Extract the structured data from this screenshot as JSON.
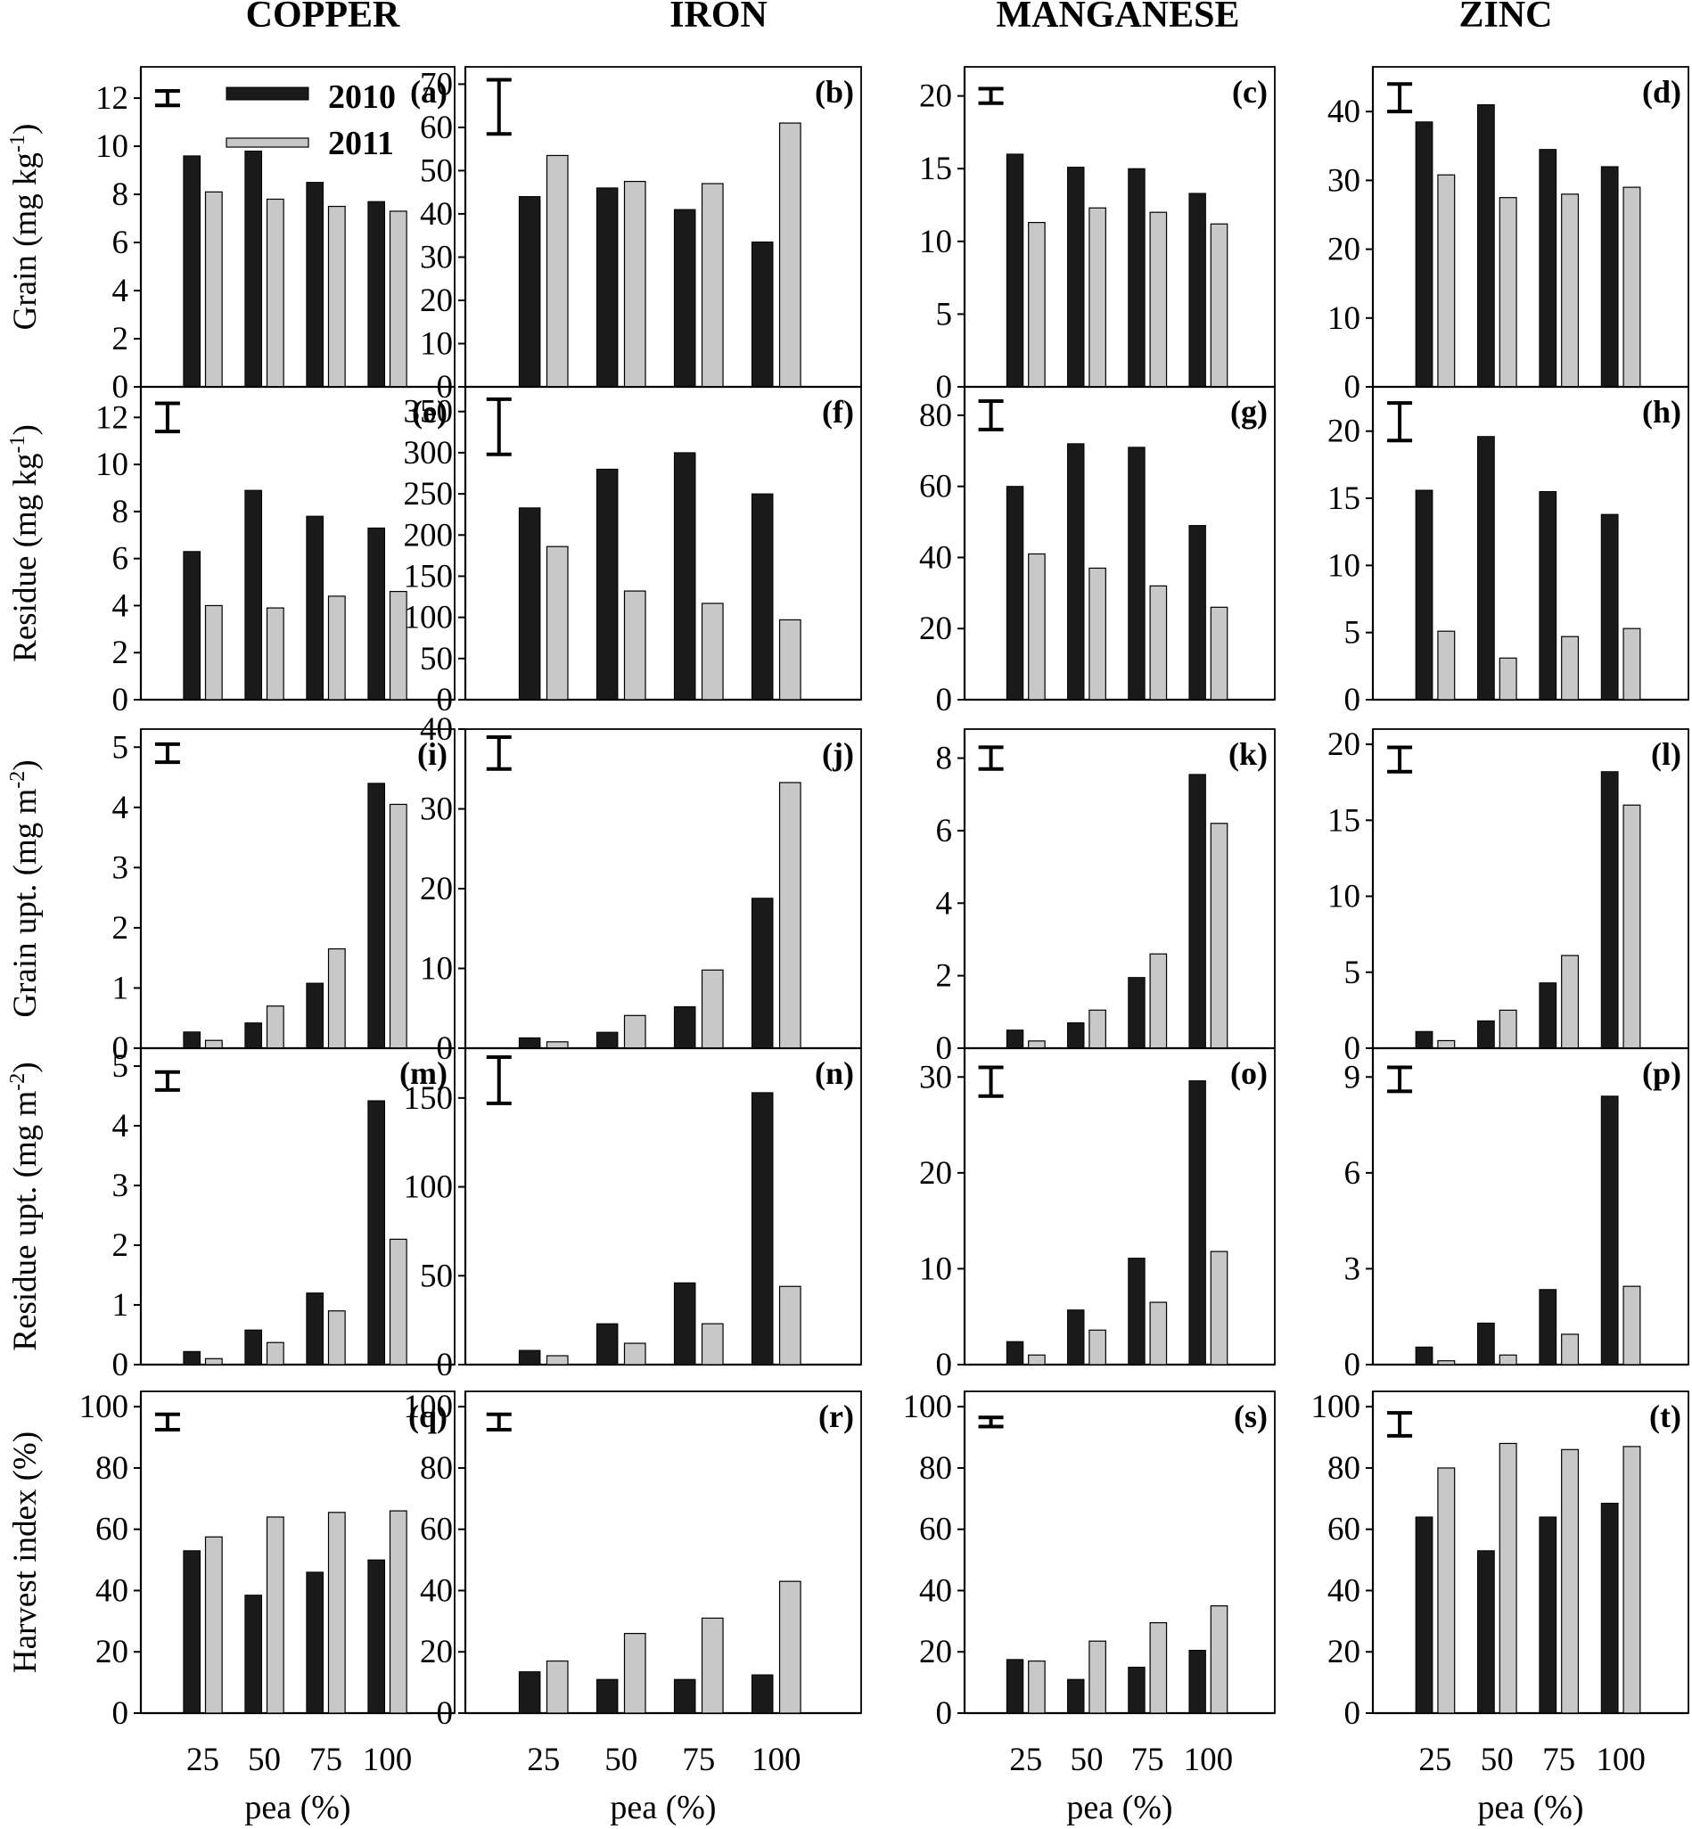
{
  "chart_data": {
    "type": "bar",
    "categories": [
      "25",
      "50",
      "75",
      "100"
    ],
    "columns": [
      "COPPER",
      "IRON",
      "MANGANESE",
      "ZINC"
    ],
    "rows": [
      {
        "ylabel_main": "Grain (mg kg",
        "ylabel_sup": "-1",
        "ylabel_end": ")"
      },
      {
        "ylabel_main": "Residue (mg kg",
        "ylabel_sup": "-1",
        "ylabel_end": ")"
      },
      {
        "ylabel_main": "Grain upt. (mg m",
        "ylabel_sup": "-2",
        "ylabel_end": ")"
      },
      {
        "ylabel_main": "Residue upt. (mg m",
        "ylabel_sup": "-2",
        "ylabel_end": ")"
      },
      {
        "ylabel_main": "Harvest index (%)",
        "ylabel_sup": "",
        "ylabel_end": ""
      }
    ],
    "xlabel": "pea (%)",
    "legend": {
      "series_2010": "2010",
      "series_2011": "2011",
      "placement": "top-center of panel (a)"
    },
    "panels": [
      {
        "label": "(a)",
        "ylim": [
          0,
          13.3
        ],
        "ticks": [
          0,
          2,
          4,
          6,
          8,
          10,
          12
        ],
        "series": [
          {
            "name": "2010",
            "values": [
              9.6,
              9.8,
              8.5,
              7.7
            ]
          },
          {
            "name": "2011",
            "values": [
              8.1,
              7.8,
              7.5,
              7.3
            ]
          }
        ],
        "error_bar": {
          "low": 11.7,
          "high": 12.3
        }
      },
      {
        "label": "(b)",
        "ylim": [
          0,
          74
        ],
        "ticks": [
          0,
          10,
          20,
          30,
          40,
          50,
          60,
          70
        ],
        "series": [
          {
            "name": "2010",
            "values": [
              44,
              46,
              41,
              33.5
            ]
          },
          {
            "name": "2011",
            "values": [
              53.5,
              47.5,
              47,
              61
            ]
          }
        ],
        "error_bar": {
          "low": 58.5,
          "high": 71
        }
      },
      {
        "label": "(c)",
        "ylim": [
          0,
          22
        ],
        "ticks": [
          0,
          5,
          10,
          15,
          20
        ],
        "series": [
          {
            "name": "2010",
            "values": [
              16,
              15.1,
              15,
              13.3
            ]
          },
          {
            "name": "2011",
            "values": [
              11.3,
              12.3,
              12,
              11.2
            ]
          }
        ],
        "error_bar": {
          "low": 19.5,
          "high": 20.5
        }
      },
      {
        "label": "(d)",
        "ylim": [
          0,
          46.5
        ],
        "ticks": [
          0,
          10,
          20,
          30,
          40
        ],
        "series": [
          {
            "name": "2010",
            "values": [
              38.5,
              41,
              34.5,
              32
            ]
          },
          {
            "name": "2011",
            "values": [
              30.8,
              27.5,
              28,
              29
            ]
          }
        ],
        "error_bar": {
          "low": 40,
          "high": 44
        }
      },
      {
        "label": "(e)",
        "ylim": [
          0,
          13.3
        ],
        "ticks": [
          0,
          2,
          4,
          6,
          8,
          10,
          12
        ],
        "series": [
          {
            "name": "2010",
            "values": [
              6.3,
              8.9,
              7.8,
              7.3
            ]
          },
          {
            "name": "2011",
            "values": [
              4,
              3.9,
              4.4,
              4.6
            ]
          }
        ],
        "error_bar": {
          "low": 11.4,
          "high": 12.6
        }
      },
      {
        "label": "(f)",
        "ylim": [
          0,
          380
        ],
        "ticks": [
          0,
          50,
          100,
          150,
          200,
          250,
          300,
          350
        ],
        "series": [
          {
            "name": "2010",
            "values": [
              233,
              280,
              300,
              250
            ]
          },
          {
            "name": "2011",
            "values": [
              186,
              132,
              117,
              97
            ]
          }
        ],
        "error_bar": {
          "low": 298,
          "high": 365
        }
      },
      {
        "label": "(g)",
        "ylim": [
          0,
          88
        ],
        "ticks": [
          0,
          20,
          40,
          60,
          80
        ],
        "series": [
          {
            "name": "2010",
            "values": [
              60,
              72,
              71,
              49
            ]
          },
          {
            "name": "2011",
            "values": [
              41,
              37,
              32,
              26
            ]
          }
        ],
        "error_bar": {
          "low": 76,
          "high": 84
        }
      },
      {
        "label": "(h)",
        "ylim": [
          0,
          23.3
        ],
        "ticks": [
          0,
          5,
          10,
          15,
          20
        ],
        "series": [
          {
            "name": "2010",
            "values": [
              15.6,
              19.6,
              15.5,
              13.8
            ]
          },
          {
            "name": "2011",
            "values": [
              5.1,
              3.1,
              4.7,
              5.3
            ]
          }
        ],
        "error_bar": {
          "low": 19.3,
          "high": 22.1
        }
      },
      {
        "label": "(i)",
        "ylim": [
          0,
          5.3
        ],
        "ticks": [
          0,
          1,
          2,
          3,
          4,
          5
        ],
        "series": [
          {
            "name": "2010",
            "values": [
              0.27,
              0.42,
              1.08,
              4.4
            ]
          },
          {
            "name": "2011",
            "values": [
              0.13,
              0.7,
              1.65,
              4.05
            ]
          }
        ],
        "error_bar": {
          "low": 4.75,
          "high": 5.05
        }
      },
      {
        "label": "(j)",
        "ylim": [
          0,
          40
        ],
        "ticks": [
          0,
          10,
          20,
          30,
          40
        ],
        "series": [
          {
            "name": "2010",
            "values": [
              1.3,
              2,
              5.2,
              18.8
            ]
          },
          {
            "name": "2011",
            "values": [
              0.8,
              4.1,
              9.8,
              33.3
            ]
          }
        ],
        "error_bar": {
          "low": 35,
          "high": 39
        }
      },
      {
        "label": "(k)",
        "ylim": [
          0,
          8.8
        ],
        "ticks": [
          0,
          2,
          4,
          6,
          8
        ],
        "series": [
          {
            "name": "2010",
            "values": [
              0.5,
              0.7,
              1.95,
              7.55
            ]
          },
          {
            "name": "2011",
            "values": [
              0.2,
              1.05,
              2.6,
              6.2
            ]
          }
        ],
        "error_bar": {
          "low": 7.7,
          "high": 8.3
        }
      },
      {
        "label": "(l)",
        "ylim": [
          0,
          21
        ],
        "ticks": [
          0,
          5,
          10,
          15,
          20
        ],
        "series": [
          {
            "name": "2010",
            "values": [
              1.1,
              1.8,
              4.3,
              18.2
            ]
          },
          {
            "name": "2011",
            "values": [
              0.5,
              2.5,
              6.1,
              16
            ]
          }
        ],
        "error_bar": {
          "low": 18.2,
          "high": 19.8
        }
      },
      {
        "label": "(m)",
        "ylim": [
          0,
          5.3
        ],
        "ticks": [
          0,
          1,
          2,
          3,
          4,
          5
        ],
        "series": [
          {
            "name": "2010",
            "values": [
              0.22,
              0.58,
              1.2,
              4.42
            ]
          },
          {
            "name": "2011",
            "values": [
              0.1,
              0.37,
              0.9,
              2.1
            ]
          }
        ],
        "error_bar": {
          "low": 4.6,
          "high": 4.9
        }
      },
      {
        "label": "(n)",
        "ylim": [
          0,
          178
        ],
        "ticks": [
          0,
          50,
          100,
          150
        ],
        "series": [
          {
            "name": "2010",
            "values": [
              8,
              23,
              46,
              153
            ]
          },
          {
            "name": "2011",
            "values": [
              5,
              12,
              23,
              44
            ]
          }
        ],
        "error_bar": {
          "low": 147,
          "high": 173
        }
      },
      {
        "label": "(o)",
        "ylim": [
          0,
          33
        ],
        "ticks": [
          0,
          10,
          20,
          30
        ],
        "series": [
          {
            "name": "2010",
            "values": [
              2.4,
              5.7,
              11.1,
              29.6
            ]
          },
          {
            "name": "2011",
            "values": [
              1,
              3.6,
              6.5,
              11.8
            ]
          }
        ],
        "error_bar": {
          "low": 28,
          "high": 31
        }
      },
      {
        "label": "(p)",
        "ylim": [
          0,
          9.9
        ],
        "ticks": [
          0,
          3,
          6,
          9
        ],
        "series": [
          {
            "name": "2010",
            "values": [
              0.55,
              1.3,
              2.35,
              8.4
            ]
          },
          {
            "name": "2011",
            "values": [
              0.12,
              0.3,
              0.95,
              2.45
            ]
          }
        ],
        "error_bar": {
          "low": 8.55,
          "high": 9.3
        }
      },
      {
        "label": "(q)",
        "ylim": [
          0,
          105
        ],
        "ticks": [
          0,
          20,
          40,
          60,
          80,
          100
        ],
        "series": [
          {
            "name": "2010",
            "values": [
              53,
              38.5,
              46,
              50
            ]
          },
          {
            "name": "2011",
            "values": [
              57.5,
              64,
              65.5,
              66
            ]
          }
        ],
        "error_bar": {
          "low": 92.5,
          "high": 97.5
        }
      },
      {
        "label": "(r)",
        "ylim": [
          0,
          105
        ],
        "ticks": [
          0,
          20,
          40,
          60,
          80,
          100
        ],
        "series": [
          {
            "name": "2010",
            "values": [
              13.5,
              11,
              11,
              12.5
            ]
          },
          {
            "name": "2011",
            "values": [
              17,
              26,
              31,
              43
            ]
          }
        ],
        "error_bar": {
          "low": 92.5,
          "high": 97.5
        }
      },
      {
        "label": "(s)",
        "ylim": [
          0,
          105
        ],
        "ticks": [
          0,
          20,
          40,
          60,
          80,
          100
        ],
        "series": [
          {
            "name": "2010",
            "values": [
              17.5,
              11,
              15,
              20.5
            ]
          },
          {
            "name": "2011",
            "values": [
              17,
              23.5,
              29.5,
              35
            ]
          }
        ],
        "error_bar": {
          "low": 93.5,
          "high": 96.5
        }
      },
      {
        "label": "(t)",
        "ylim": [
          0,
          105
        ],
        "ticks": [
          0,
          20,
          40,
          60,
          80,
          100
        ],
        "series": [
          {
            "name": "2010",
            "values": [
              64,
              53,
              64,
              68.5
            ]
          },
          {
            "name": "2011",
            "values": [
              80,
              88,
              86,
              87
            ]
          }
        ],
        "error_bar": {
          "low": 90.5,
          "high": 98
        }
      }
    ]
  }
}
